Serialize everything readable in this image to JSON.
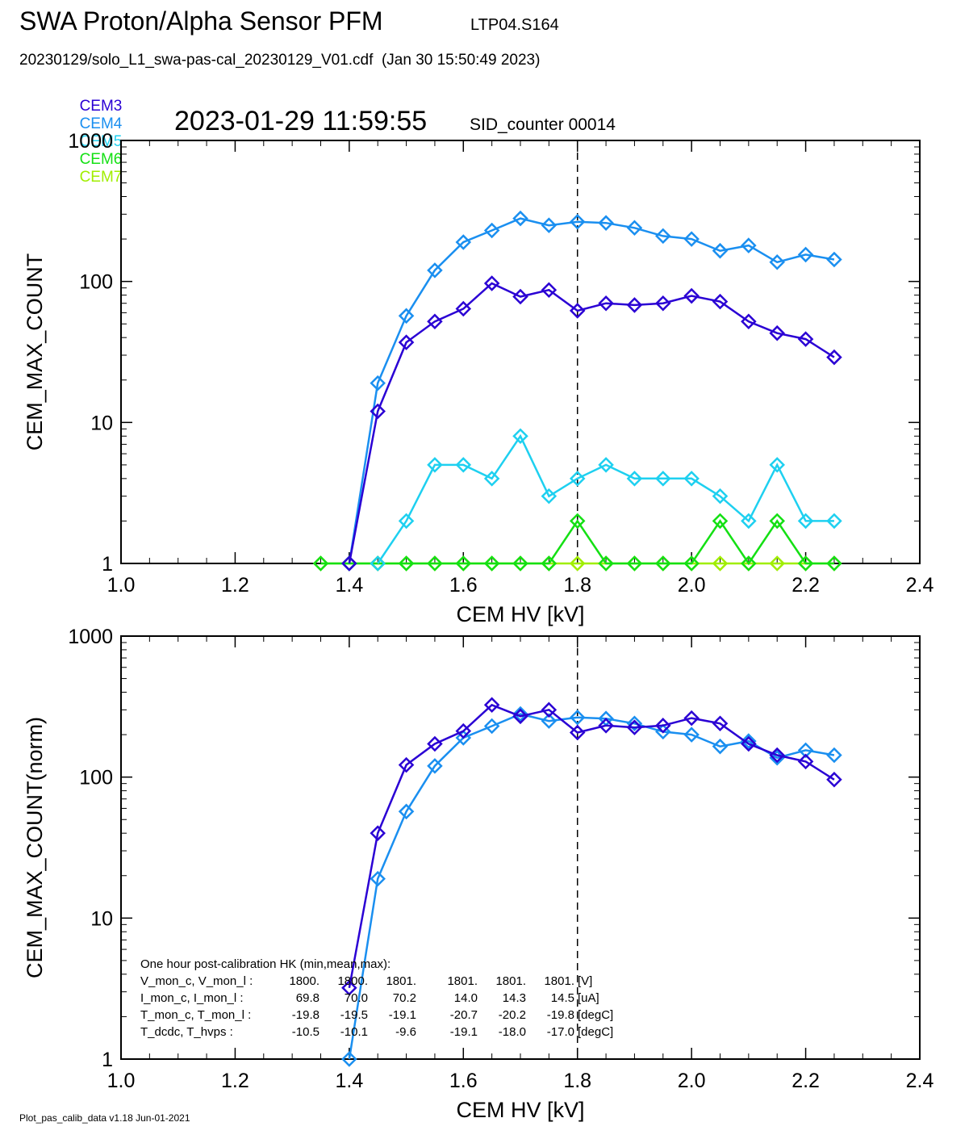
{
  "header": {
    "title": "SWA Proton/Alpha Sensor PFM",
    "subtitle": "LTP04.S164",
    "file_line": "20230129/solo_L1_swa-pas-cal_20230129_V01.cdf  (Jan 30 15:50:49 2023)",
    "timestamp": "2023-01-29 11:59:55",
    "sid_counter": "SID_counter 00014"
  },
  "legend": [
    {
      "name": "CEM3",
      "color": "#2a00d4"
    },
    {
      "name": "CEM4",
      "color": "#1a8ff0"
    },
    {
      "name": "CEM5",
      "color": "#1ed0f0"
    },
    {
      "name": "CEM6",
      "color": "#14e014"
    },
    {
      "name": "CEM7",
      "color": "#a0ee00"
    }
  ],
  "footer": "Plot_pas_calib_data v1.18 Jun-01-2021",
  "chart_data": [
    {
      "type": "line",
      "xlabel": "CEM HV [kV]",
      "ylabel": "CEM_MAX_COUNT",
      "xlim": [
        1.0,
        2.4
      ],
      "ylim": [
        1,
        1000
      ],
      "yscale": "log",
      "xticks": [
        "1.0",
        "1.2",
        "1.4",
        "1.6",
        "1.8",
        "2.0",
        "2.2",
        "2.4"
      ],
      "yticks": [
        "1",
        "10",
        "100",
        "1000"
      ],
      "vline_x": 1.8,
      "series": [
        {
          "name": "CEM3",
          "color": "#2a00d4",
          "x": [
            1.4,
            1.45,
            1.5,
            1.55,
            1.6,
            1.65,
            1.7,
            1.75,
            1.8,
            1.85,
            1.9,
            1.95,
            2.0,
            2.05,
            2.1,
            2.15,
            2.2,
            2.25
          ],
          "y": [
            1,
            12,
            37,
            52,
            64,
            97,
            78,
            87,
            62,
            70,
            68,
            70,
            79,
            72,
            52,
            43,
            39,
            29
          ]
        },
        {
          "name": "CEM4",
          "color": "#1a8ff0",
          "x": [
            1.4,
            1.45,
            1.5,
            1.55,
            1.6,
            1.65,
            1.7,
            1.75,
            1.8,
            1.85,
            1.9,
            1.95,
            2.0,
            2.05,
            2.1,
            2.15,
            2.2,
            2.25
          ],
          "y": [
            1,
            19,
            57,
            120,
            190,
            230,
            280,
            250,
            265,
            260,
            240,
            210,
            200,
            165,
            180,
            137,
            155,
            143
          ]
        },
        {
          "name": "CEM5",
          "color": "#1ed0f0",
          "x": [
            1.45,
            1.5,
            1.55,
            1.6,
            1.65,
            1.7,
            1.75,
            1.8,
            1.85,
            1.9,
            1.95,
            2.0,
            2.05,
            2.1,
            2.15,
            2.2,
            2.25
          ],
          "y": [
            1,
            2,
            5,
            5,
            4,
            8,
            3,
            4,
            5,
            4,
            4,
            4,
            3,
            2,
            5,
            2,
            2
          ]
        },
        {
          "name": "CEM6",
          "color": "#14e014",
          "x": [
            1.35,
            1.4,
            1.45,
            1.5,
            1.55,
            1.6,
            1.65,
            1.7,
            1.75,
            1.8,
            1.85,
            1.9,
            1.95,
            2.0,
            2.05,
            2.1,
            2.15,
            2.2,
            2.25
          ],
          "y": [
            1,
            1,
            1,
            1,
            1,
            1,
            1,
            1,
            1,
            2,
            1,
            1,
            1,
            1,
            2,
            1,
            2,
            1,
            1
          ]
        },
        {
          "name": "CEM7",
          "color": "#a0ee00",
          "x": [
            1.35,
            1.4,
            1.45,
            1.5,
            1.55,
            1.6,
            1.65,
            1.7,
            1.75,
            1.8,
            1.85,
            1.9,
            1.95,
            2.0,
            2.05,
            2.1,
            2.15,
            2.2,
            2.25
          ],
          "y": [
            1,
            1,
            1,
            1,
            1,
            1,
            1,
            1,
            1,
            1,
            1,
            1,
            1,
            1,
            1,
            1,
            1,
            1,
            1
          ]
        }
      ]
    },
    {
      "type": "line",
      "xlabel": "CEM HV [kV]",
      "ylabel": "CEM_MAX_COUNT(norm)",
      "xlim": [
        1.0,
        2.4
      ],
      "ylim": [
        1,
        1000
      ],
      "yscale": "log",
      "xticks": [
        "1.0",
        "1.2",
        "1.4",
        "1.6",
        "1.8",
        "2.0",
        "2.2",
        "2.4"
      ],
      "yticks": [
        "1",
        "10",
        "100",
        "1000"
      ],
      "vline_x": 1.8,
      "series": [
        {
          "name": "CEM3",
          "color": "#2a00d4",
          "x": [
            1.4,
            1.45,
            1.5,
            1.55,
            1.6,
            1.65,
            1.7,
            1.75,
            1.8,
            1.85,
            1.9,
            1.95,
            2.0,
            2.05,
            2.1,
            2.15,
            2.2,
            2.25
          ],
          "y": [
            3.2,
            40,
            122,
            172,
            212,
            325,
            270,
            300,
            207,
            232,
            225,
            232,
            262,
            240,
            172,
            143,
            129,
            96
          ]
        },
        {
          "name": "CEM4",
          "color": "#1a8ff0",
          "x": [
            1.4,
            1.45,
            1.5,
            1.55,
            1.6,
            1.65,
            1.7,
            1.75,
            1.8,
            1.85,
            1.9,
            1.95,
            2.0,
            2.05,
            2.1,
            2.15,
            2.2,
            2.25
          ],
          "y": [
            1,
            19,
            57,
            120,
            190,
            230,
            280,
            250,
            265,
            260,
            240,
            210,
            200,
            165,
            180,
            137,
            155,
            143
          ]
        }
      ],
      "annotation": {
        "heading": "One hour post-calibration HK (min,mean,max):",
        "rows": [
          {
            "label": "V_mon_c, V_mon_l :",
            "c": [
              "1800.",
              "1800.",
              "1801."
            ],
            "l": [
              "1801.",
              "1801.",
              "1801."
            ],
            "unit": "[V]"
          },
          {
            "label": "I_mon_c,  I_mon_l :",
            "c": [
              "69.8",
              "70.0",
              "70.2"
            ],
            "l": [
              "14.0",
              "14.3",
              "14.5"
            ],
            "unit": "[uA]"
          },
          {
            "label": "T_mon_c, T_mon_l :",
            "c": [
              "-19.8",
              "-19.5",
              "-19.1"
            ],
            "l": [
              "-20.7",
              "-20.2",
              "-19.8"
            ],
            "unit": "[degC]"
          },
          {
            "label": "T_dcdc,    T_hvps :",
            "c": [
              "-10.5",
              "-10.1",
              "-9.6"
            ],
            "l": [
              "-19.1",
              "-18.0",
              "-17.0"
            ],
            "unit": "[degC]"
          }
        ]
      }
    }
  ]
}
